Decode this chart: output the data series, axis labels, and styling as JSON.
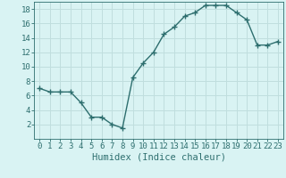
{
  "x": [
    0,
    1,
    2,
    3,
    4,
    5,
    6,
    7,
    8,
    9,
    10,
    11,
    12,
    13,
    14,
    15,
    16,
    17,
    18,
    19,
    20,
    21,
    22,
    23
  ],
  "y": [
    7,
    6.5,
    6.5,
    6.5,
    5,
    3,
    3,
    2,
    1.5,
    8.5,
    10.5,
    12,
    14.5,
    15.5,
    17,
    17.5,
    18.5,
    18.5,
    18.5,
    17.5,
    16.5,
    13,
    13,
    13.5
  ],
  "line_color": "#2d6e6e",
  "marker": "+",
  "marker_size": 4,
  "marker_linewidth": 1.0,
  "bg_color": "#d9f3f3",
  "grid_color": "#c0dede",
  "xlabel": "Humidex (Indice chaleur)",
  "xlim": [
    -0.5,
    23.5
  ],
  "ylim": [
    0,
    19
  ],
  "yticks": [
    2,
    4,
    6,
    8,
    10,
    12,
    14,
    16,
    18
  ],
  "xticks": [
    0,
    1,
    2,
    3,
    4,
    5,
    6,
    7,
    8,
    9,
    10,
    11,
    12,
    13,
    14,
    15,
    16,
    17,
    18,
    19,
    20,
    21,
    22,
    23
  ],
  "tick_color": "#2d6e6e",
  "xlabel_fontsize": 7.5,
  "tick_fontsize": 6.5,
  "linewidth": 1.0
}
